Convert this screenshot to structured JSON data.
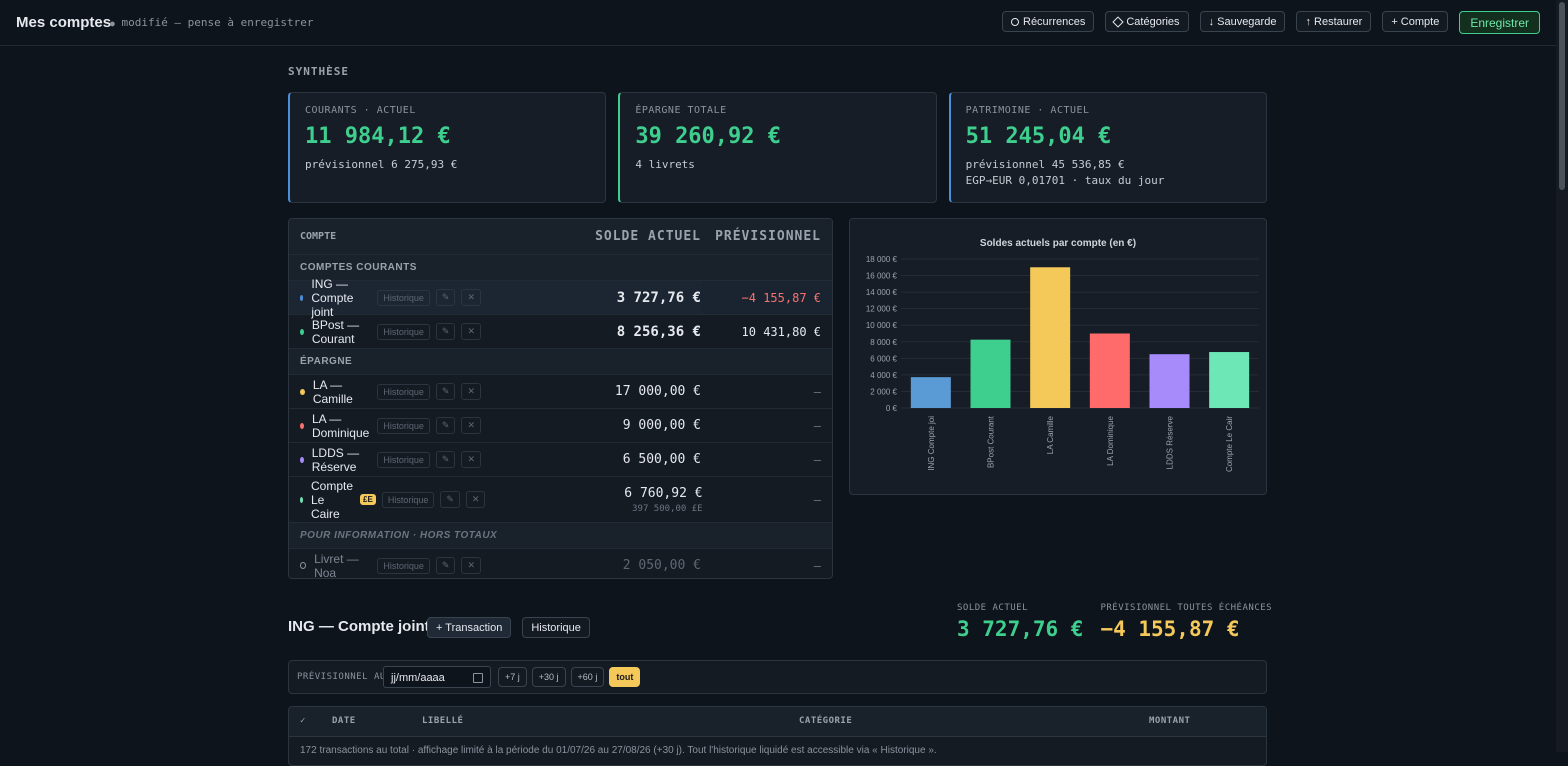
{
  "header": {
    "title": "Mes comptes",
    "status": "modifié — pense à enregistrer",
    "buttons": [
      "Récurrences",
      "Catégories",
      "↓ Sauvegarde",
      "↑ Restaurer",
      "+ Compte",
      "Enregistrer"
    ]
  },
  "synthese": {
    "heading": "SYNTHÈSE",
    "cards": [
      {
        "label": "COURANTS · ACTUEL",
        "value": "11 984,12 €",
        "lines": [
          "prévisionnel 6 275,93 €"
        ],
        "accent": "#4a90d9"
      },
      {
        "label": "ÉPARGNE TOTALE",
        "value": "39 260,92 €",
        "lines": [
          "4 livrets"
        ],
        "accent": "#3ecf8e"
      },
      {
        "label": "PATRIMOINE · ACTUEL",
        "value": "51 245,04 €",
        "lines": [
          "prévisionnel 45 536,85 €",
          "EGP→EUR 0,01701 · taux du jour"
        ],
        "accent": "#4a90d9"
      }
    ]
  },
  "accounts": {
    "headers": [
      "COMPTE",
      "SOLDE ACTUEL",
      "PRÉVISIONNEL"
    ],
    "row_actions": [
      "Historique",
      "✎",
      "✕"
    ],
    "groups": [
      {
        "title": "COMPTES COURANTS",
        "rows": [
          {
            "name": "ING — Compte joint",
            "color": "#4a90d9",
            "solde": "3 727,76 €",
            "prev": "−4 155,87 €",
            "prev_color": "#f87171",
            "selected": true
          },
          {
            "name": "BPost — Courant",
            "color": "#3ecf8e",
            "solde": "8 256,36 €",
            "prev": "10 431,80 €"
          }
        ]
      },
      {
        "title": "ÉPARGNE",
        "rows": [
          {
            "name": "LA — Camille",
            "color": "#f5c85a",
            "solde": "17 000,00 €",
            "prev": "—"
          },
          {
            "name": "LA — Dominique",
            "color": "#f87171",
            "solde": "9 000,00 €",
            "prev": "—"
          },
          {
            "name": "LDDS — Réserve",
            "color": "#a78bfa",
            "solde": "6 500,00 €",
            "prev": "—"
          },
          {
            "name": "Compte Le Caire",
            "badge": "£E",
            "color": "#6ee7b7",
            "solde": "6 760,92 €",
            "sub": "397 500,00 £E",
            "prev": "—"
          }
        ]
      },
      {
        "title": "POUR INFORMATION · HORS TOTAUX",
        "muted": true,
        "rows": [
          {
            "name": "Livret — Noa",
            "color": "#8a939e",
            "solde": "2 050,00 €",
            "prev": "—"
          }
        ]
      }
    ]
  },
  "chart_data": {
    "type": "bar",
    "title": "Soldes actuels par compte (en €)",
    "categories": [
      "ING Compte joi",
      "BPost Courant",
      "LA Camille",
      "LA Dominique",
      "LDDS Réserve",
      "Compte Le Cair"
    ],
    "values": [
      3727.76,
      8256.36,
      17000,
      9000,
      6500,
      6760.92
    ],
    "colors": [
      "#5b9bd5",
      "#3ecf8e",
      "#f5c85a",
      "#ff6b6b",
      "#a78bfa",
      "#6ee7b7"
    ],
    "ylim": [
      0,
      18000
    ],
    "yticks": [
      {
        "value": 0,
        "label": "0 €"
      },
      {
        "value": 2000,
        "label": "2 000 €"
      },
      {
        "value": 4000,
        "label": "4 000 €"
      },
      {
        "value": 6000,
        "label": "6 000 €"
      },
      {
        "value": 8000,
        "label": "8 000 €"
      },
      {
        "value": 10000,
        "label": "10 000 €"
      },
      {
        "value": 12000,
        "label": "12 000 €"
      },
      {
        "value": 14000,
        "label": "14 000 €"
      },
      {
        "value": 16000,
        "label": "16 000 €"
      },
      {
        "value": 18000,
        "label": "18 000 €"
      }
    ],
    "grid": true
  },
  "detail": {
    "title": "ING — Compte joint",
    "buttons": [
      "+ Transaction",
      "Historique"
    ],
    "stats": [
      {
        "label": "SOLDE ACTUEL",
        "value": "3 727,76 €",
        "color": "#3ecf8e"
      },
      {
        "label": "PRÉVISIONNEL TOUTES ÉCHÉANCES",
        "value": "−4 155,87 €",
        "color": "#f5c85a"
      }
    ],
    "filter": {
      "label": "PRÉVISIONNEL AU",
      "placeholder": "jj/mm/aaaa",
      "buttons": [
        "+7 j",
        "+30 j",
        "+60 j",
        "tout"
      ],
      "active": 3
    },
    "table": {
      "headers": [
        "✓",
        "DATE",
        "LIBELLÉ",
        "CATÉGORIE",
        "MONTANT"
      ],
      "note": "172 transactions au total · affichage limité à la période du 01/07/26 au 27/08/26 (+30 j). Tout l'historique liquidé est accessible via « Historique »."
    }
  }
}
